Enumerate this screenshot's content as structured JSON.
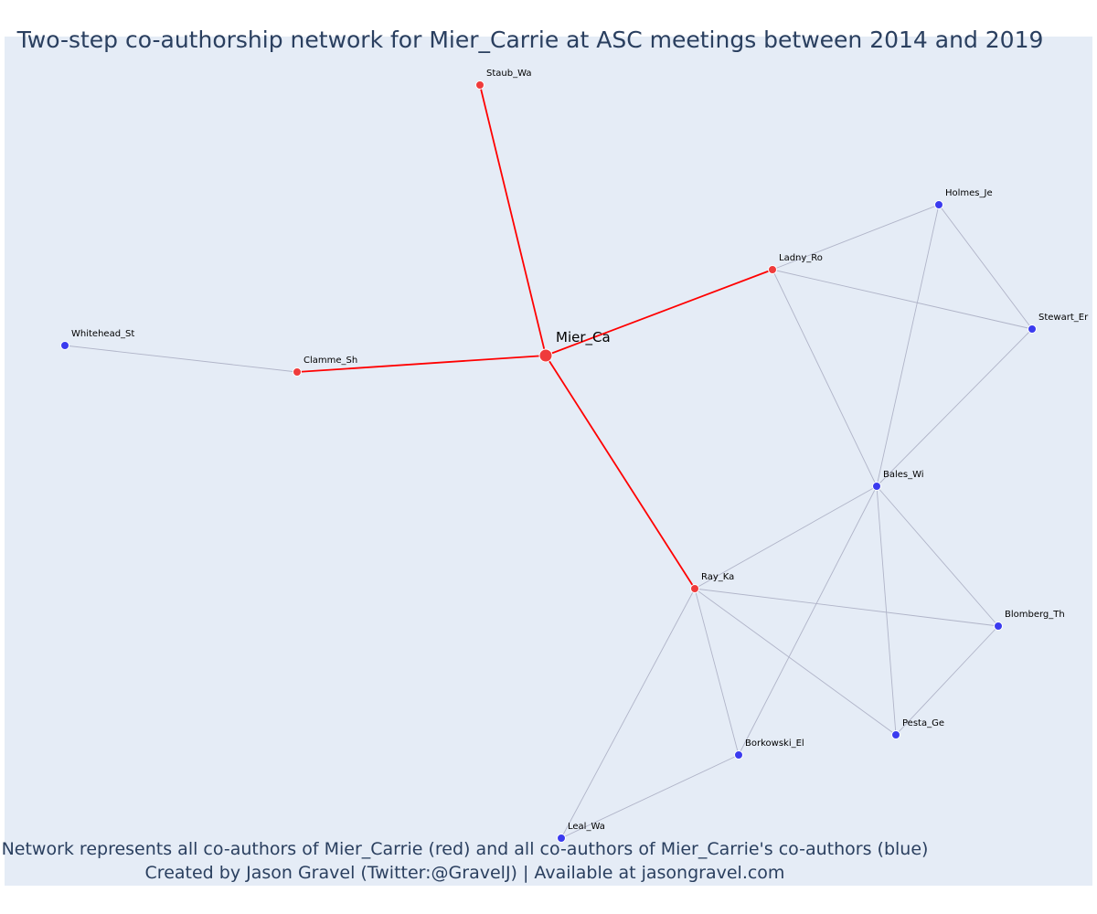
{
  "title": "Two-step co-authorship network for Mier_Carrie at ASC meetings between 2014 and 2019",
  "caption": {
    "line1": "Network represents all co-authors of Mier_Carrie (red) and all co-authors of Mier_Carrie's co-authors (blue)",
    "line2": "Created by Jason Gravel (Twitter:@GravelJ) | Available at jasongravel.com"
  },
  "colors": {
    "background": "#e5ecf6",
    "ego_edge": "#ff0000",
    "other_edge": "#b0b4c8",
    "first_degree_node": "#ef3b3b",
    "second_degree_node": "#3b3bef"
  },
  "nodes": [
    {
      "id": "Mier_Ca",
      "label": "Mier_Ca",
      "group": "ego"
    },
    {
      "id": "Staub_Wa",
      "label": "Staub_Wa",
      "group": "coauthor"
    },
    {
      "id": "Ladny_Ro",
      "label": "Ladny_Ro",
      "group": "coauthor"
    },
    {
      "id": "Clamme_Sh",
      "label": "Clamme_Sh",
      "group": "coauthor"
    },
    {
      "id": "Ray_Ka",
      "label": "Ray_Ka",
      "group": "coauthor"
    },
    {
      "id": "Whitehead_St",
      "label": "Whitehead_St",
      "group": "second"
    },
    {
      "id": "Holmes_Je",
      "label": "Holmes_Je",
      "group": "second"
    },
    {
      "id": "Stewart_Er",
      "label": "Stewart_Er",
      "group": "second"
    },
    {
      "id": "Bales_Wi",
      "label": "Bales_Wi",
      "group": "second"
    },
    {
      "id": "Blomberg_Th",
      "label": "Blomberg_Th",
      "group": "second"
    },
    {
      "id": "Pesta_Ge",
      "label": "Pesta_Ge",
      "group": "second"
    },
    {
      "id": "Borkowski_El",
      "label": "Borkowski_El",
      "group": "second"
    },
    {
      "id": "Leal_Wa",
      "label": "Leal_Wa",
      "group": "second"
    }
  ],
  "edges": [
    {
      "source": "Mier_Ca",
      "target": "Staub_Wa",
      "type": "ego"
    },
    {
      "source": "Mier_Ca",
      "target": "Ladny_Ro",
      "type": "ego"
    },
    {
      "source": "Mier_Ca",
      "target": "Clamme_Sh",
      "type": "ego"
    },
    {
      "source": "Mier_Ca",
      "target": "Ray_Ka",
      "type": "ego"
    },
    {
      "source": "Clamme_Sh",
      "target": "Whitehead_St",
      "type": "other"
    },
    {
      "source": "Ladny_Ro",
      "target": "Holmes_Je",
      "type": "other"
    },
    {
      "source": "Ladny_Ro",
      "target": "Stewart_Er",
      "type": "other"
    },
    {
      "source": "Ladny_Ro",
      "target": "Bales_Wi",
      "type": "other"
    },
    {
      "source": "Holmes_Je",
      "target": "Stewart_Er",
      "type": "other"
    },
    {
      "source": "Holmes_Je",
      "target": "Bales_Wi",
      "type": "other"
    },
    {
      "source": "Stewart_Er",
      "target": "Bales_Wi",
      "type": "other"
    },
    {
      "source": "Bales_Wi",
      "target": "Ray_Ka",
      "type": "other"
    },
    {
      "source": "Bales_Wi",
      "target": "Blomberg_Th",
      "type": "other"
    },
    {
      "source": "Bales_Wi",
      "target": "Pesta_Ge",
      "type": "other"
    },
    {
      "source": "Bales_Wi",
      "target": "Borkowski_El",
      "type": "other"
    },
    {
      "source": "Ray_Ka",
      "target": "Blomberg_Th",
      "type": "other"
    },
    {
      "source": "Ray_Ka",
      "target": "Pesta_Ge",
      "type": "other"
    },
    {
      "source": "Ray_Ka",
      "target": "Borkowski_El",
      "type": "other"
    },
    {
      "source": "Ray_Ka",
      "target": "Leal_Wa",
      "type": "other"
    },
    {
      "source": "Blomberg_Th",
      "target": "Pesta_Ge",
      "type": "other"
    },
    {
      "source": "Borkowski_El",
      "target": "Leal_Wa",
      "type": "other"
    }
  ]
}
